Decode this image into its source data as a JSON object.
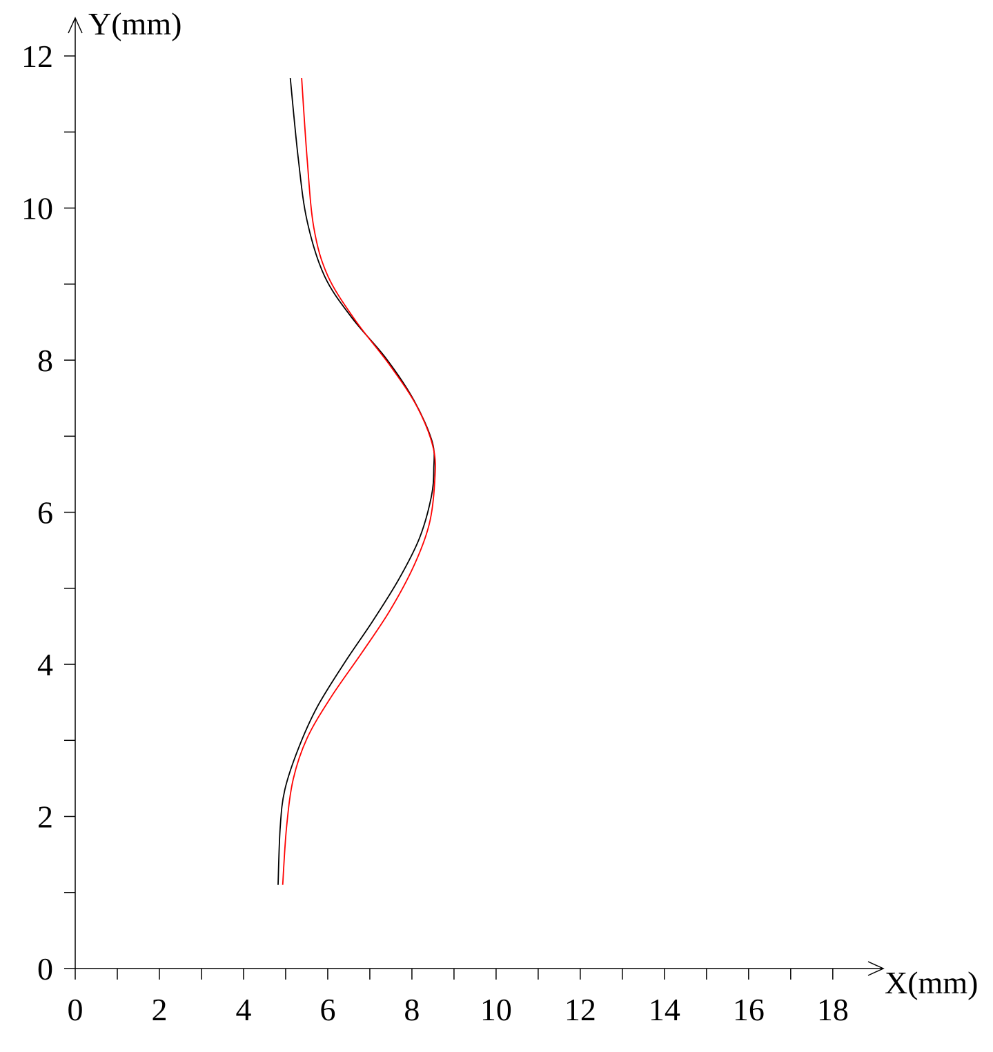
{
  "chart_data": {
    "type": "line",
    "x_label": "X(mm)",
    "y_label": "Y(mm)",
    "xlim": [
      0,
      19.2
    ],
    "ylim": [
      0,
      12.5
    ],
    "xticks": [
      0,
      2,
      4,
      6,
      8,
      10,
      12,
      14,
      16,
      18
    ],
    "yticks": [
      0,
      2,
      4,
      6,
      8,
      10,
      12
    ],
    "xticks_minor": [
      1,
      3,
      5,
      7,
      9,
      11,
      13,
      15,
      17
    ],
    "yticks_minor": [
      1,
      3,
      5,
      7,
      9,
      11
    ],
    "series": [
      {
        "color": "#000000",
        "x": [
          4.82,
          4.87,
          4.98,
          5.3,
          5.75,
          6.41,
          7.07,
          7.69,
          8.18,
          8.46,
          8.52,
          8.48,
          8.05,
          7.39,
          6.57,
          5.92,
          5.51,
          5.3,
          5.11
        ],
        "values": [
          1.1,
          1.85,
          2.35,
          2.89,
          3.44,
          4.03,
          4.57,
          5.12,
          5.66,
          6.2,
          6.57,
          6.93,
          7.47,
          8.02,
          8.56,
          9.11,
          9.83,
          10.65,
          11.71
        ]
      },
      {
        "color": "#ff0000",
        "x": [
          4.93,
          5.02,
          5.18,
          5.51,
          6.08,
          6.82,
          7.48,
          8.05,
          8.41,
          8.54,
          8.51,
          8.13,
          7.48,
          6.66,
          6.0,
          5.67,
          5.51,
          5.38
        ],
        "values": [
          1.1,
          1.85,
          2.49,
          3.03,
          3.57,
          4.16,
          4.71,
          5.3,
          5.84,
          6.39,
          6.84,
          7.38,
          7.93,
          8.52,
          9.11,
          9.74,
          10.65,
          11.71
        ]
      }
    ]
  }
}
